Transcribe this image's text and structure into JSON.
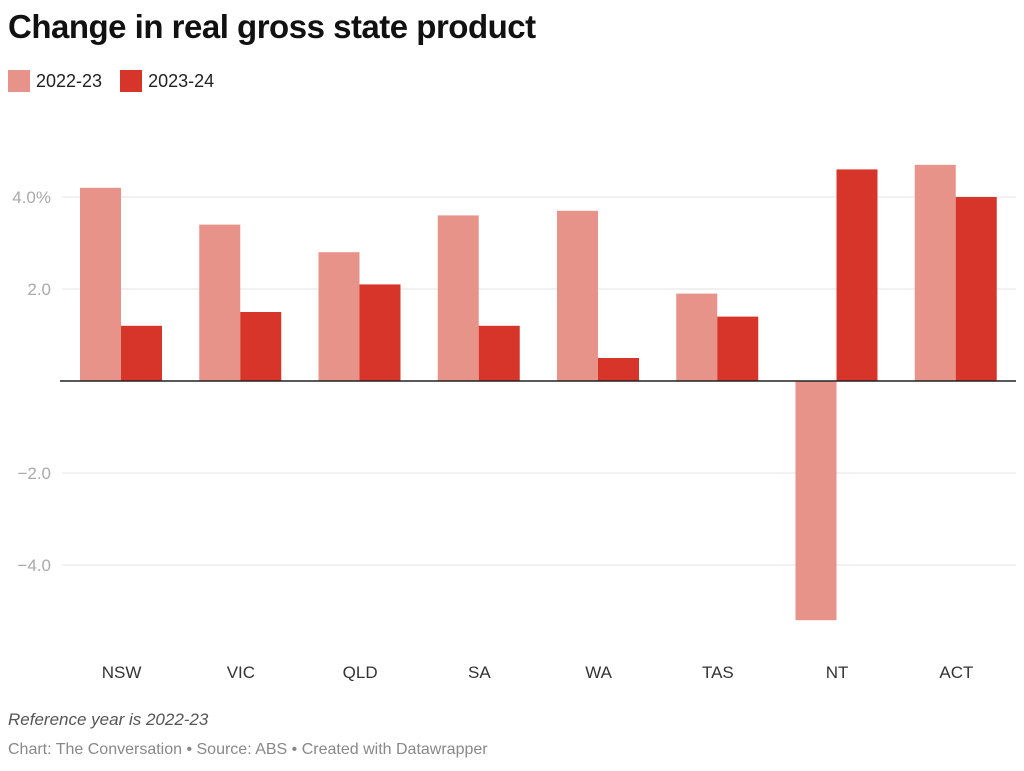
{
  "chart_data": {
    "type": "bar",
    "title": "Change in real gross state product",
    "categories": [
      "NSW",
      "VIC",
      "QLD",
      "SA",
      "WA",
      "TAS",
      "NT",
      "ACT"
    ],
    "series": [
      {
        "name": "2022-23",
        "color": "#e8938a",
        "values": [
          4.2,
          3.4,
          2.8,
          3.6,
          3.7,
          1.9,
          -5.2,
          4.7
        ]
      },
      {
        "name": "2023-24",
        "color": "#d8352a",
        "values": [
          1.2,
          1.5,
          2.1,
          1.2,
          0.5,
          1.4,
          4.6,
          4.0
        ]
      }
    ],
    "yticks": [
      {
        "value": 4,
        "label": "4.0%"
      },
      {
        "value": 2,
        "label": "2.0"
      },
      {
        "value": -2,
        "label": "−2.0"
      },
      {
        "value": -4,
        "label": "−4.0"
      }
    ],
    "ylim": [
      -5.7,
      5
    ],
    "grid": true,
    "legend": "top-left",
    "note": "Reference year is 2022-23",
    "credit": "Chart: The Conversation • Source: ABS • Created with Datawrapper"
  }
}
